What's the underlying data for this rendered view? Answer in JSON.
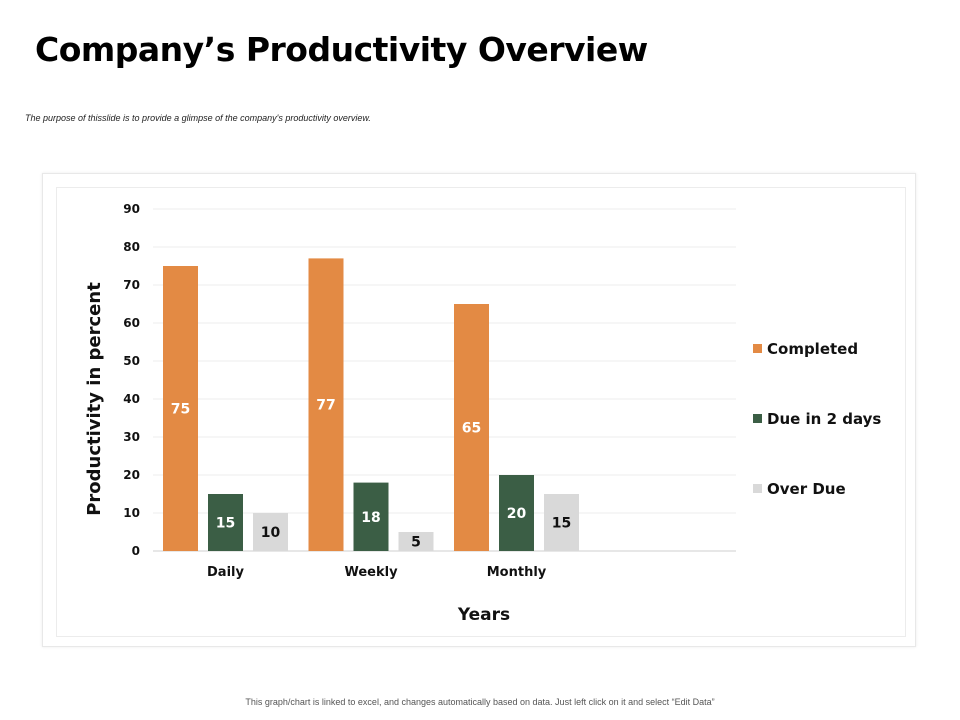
{
  "slide": {
    "title": "Company’s Productivity Overview",
    "subtitle": "The purpose of thisslide is to provide a glimpse of the company's productivity overview.",
    "footer": "This graph/chart is linked to excel, and changes automatically based on data. Just left click on it and select “Edit Data”"
  },
  "chart_data": {
    "type": "bar",
    "categories": [
      "Daily",
      "Weekly",
      "Monthly"
    ],
    "series": [
      {
        "name": "Completed",
        "values": [
          75,
          77,
          65
        ],
        "color": "#E38A44"
      },
      {
        "name": "Due in 2 days",
        "values": [
          15,
          18,
          20
        ],
        "color": "#3B5E45"
      },
      {
        "name": "Over Due",
        "values": [
          10,
          5,
          15
        ],
        "color": "#D9D9D9"
      }
    ],
    "xlabel": "Years",
    "ylabel": "Productivity in percent",
    "ylim": [
      0,
      90
    ],
    "yticks": [
      0,
      10,
      20,
      30,
      40,
      50,
      60,
      70,
      80,
      90
    ],
    "grid": true,
    "legend_position": "right",
    "data_labels": true
  }
}
